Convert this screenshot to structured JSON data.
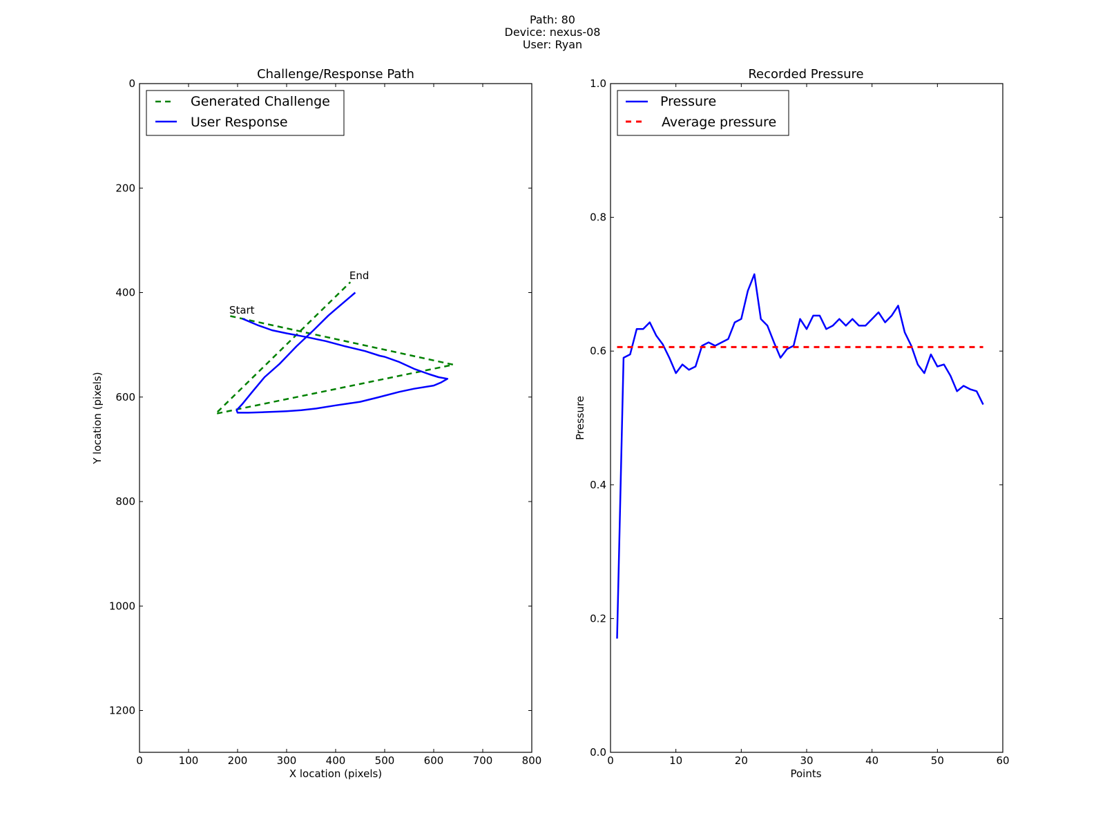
{
  "figure": {
    "title_lines": [
      "Path: 80",
      "Device: nexus-08",
      "User: Ryan"
    ]
  },
  "colors": {
    "challenge": "#008000",
    "response": "#0000ff",
    "pressure": "#0000ff",
    "average": "#ff0000"
  },
  "chart_data": [
    {
      "type": "line",
      "title": "Challenge/Response Path",
      "xlabel": "X location (pixels)",
      "ylabel": "Y location (pixels)",
      "xlim": [
        0,
        800
      ],
      "ylim": [
        1280,
        0
      ],
      "y_inverted": true,
      "xticks": [
        0,
        100,
        200,
        300,
        400,
        500,
        600,
        700,
        800
      ],
      "yticks": [
        0,
        200,
        400,
        600,
        800,
        1000,
        1200
      ],
      "legend_position": "top-left",
      "grid": false,
      "series": [
        {
          "name": "Generated Challenge",
          "style": "dashed",
          "x": [
            185,
            640,
            155,
            430
          ],
          "y": [
            445,
            538,
            632,
            380
          ]
        },
        {
          "name": "User Response",
          "style": "solid",
          "x": [
            210,
            240,
            270,
            300,
            340,
            380,
            420,
            460,
            490,
            500,
            530,
            560,
            590,
            610,
            628,
            615,
            600,
            560,
            530,
            485,
            450,
            400,
            360,
            330,
            300,
            280,
            250,
            222,
            200,
            198,
            210,
            230,
            255,
            285,
            320,
            355,
            385,
            400,
            440
          ],
          "y": [
            450,
            462,
            472,
            478,
            485,
            493,
            503,
            512,
            521,
            523,
            533,
            546,
            556,
            562,
            565,
            572,
            578,
            584,
            590,
            601,
            609,
            616,
            622,
            625,
            627,
            628,
            629,
            630,
            630,
            625,
            613,
            590,
            562,
            537,
            503,
            472,
            444,
            432,
            400
          ]
        }
      ],
      "annotations": [
        {
          "text": "Start",
          "x": 183,
          "y": 440
        },
        {
          "text": "End",
          "x": 428,
          "y": 374
        }
      ]
    },
    {
      "type": "line",
      "title": "Recorded Pressure",
      "xlabel": "Points",
      "ylabel": "Pressure",
      "xlim": [
        0,
        60
      ],
      "ylim": [
        0.0,
        1.0
      ],
      "xticks": [
        0,
        10,
        20,
        30,
        40,
        50,
        60
      ],
      "yticks": [
        0.0,
        0.2,
        0.4,
        0.6,
        0.8,
        1.0
      ],
      "tick_format": "0.1",
      "legend_position": "top-left",
      "grid": false,
      "series": [
        {
          "name": "Pressure",
          "style": "solid",
          "x": [
            1,
            2,
            3,
            4,
            5,
            6,
            7,
            8,
            9,
            10,
            11,
            12,
            13,
            14,
            15,
            16,
            17,
            18,
            19,
            20,
            21,
            22,
            23,
            24,
            25,
            26,
            27,
            28,
            29,
            30,
            31,
            32,
            33,
            34,
            35,
            36,
            37,
            38,
            39,
            40,
            41,
            42,
            43,
            44,
            45,
            46,
            47,
            48,
            49,
            50,
            51,
            52,
            53,
            54,
            55,
            56,
            57
          ],
          "y": [
            0.17,
            0.59,
            0.595,
            0.633,
            0.633,
            0.643,
            0.623,
            0.61,
            0.59,
            0.567,
            0.58,
            0.572,
            0.577,
            0.608,
            0.613,
            0.608,
            0.613,
            0.618,
            0.643,
            0.648,
            0.69,
            0.715,
            0.648,
            0.638,
            0.613,
            0.59,
            0.603,
            0.608,
            0.648,
            0.633,
            0.653,
            0.653,
            0.633,
            0.638,
            0.648,
            0.638,
            0.648,
            0.638,
            0.638,
            0.648,
            0.658,
            0.643,
            0.653,
            0.668,
            0.628,
            0.608,
            0.58,
            0.567,
            0.595,
            0.577,
            0.58,
            0.563,
            0.54,
            0.548,
            0.543,
            0.54,
            0.52
          ]
        },
        {
          "name": "Average pressure",
          "style": "dashed",
          "x": [
            1,
            57
          ],
          "y": [
            0.606,
            0.606
          ]
        }
      ]
    }
  ]
}
